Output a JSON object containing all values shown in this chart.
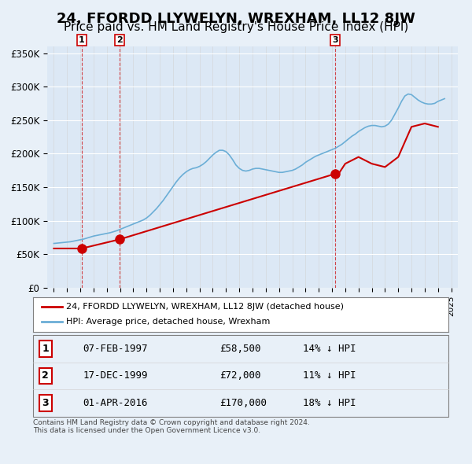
{
  "title": "24, FFORDD LLYWELYN, WREXHAM, LL12 8JW",
  "subtitle": "Price paid vs. HM Land Registry's House Price Index (HPI)",
  "title_fontsize": 13,
  "subtitle_fontsize": 11,
  "background_color": "#e8f0f8",
  "plot_bg_color": "#dce8f5",
  "ylim": [
    0,
    360000
  ],
  "yticks": [
    0,
    50000,
    100000,
    150000,
    200000,
    250000,
    300000,
    350000
  ],
  "ytick_labels": [
    "£0",
    "£50K",
    "£100K",
    "£150K",
    "£200K",
    "£250K",
    "£300K",
    "£350K"
  ],
  "xlim_start": 1994.5,
  "xlim_end": 2025.5,
  "hpi_color": "#6baed6",
  "price_color": "#cc0000",
  "transactions": [
    {
      "num": 1,
      "date_year": 1997.1,
      "price": 58500,
      "label": "07-FEB-1997",
      "amount": "£58,500",
      "pct": "14% ↓ HPI"
    },
    {
      "num": 2,
      "date_year": 1999.95,
      "price": 72000,
      "label": "17-DEC-1999",
      "amount": "£72,000",
      "pct": "11% ↓ HPI"
    },
    {
      "num": 3,
      "date_year": 2016.25,
      "price": 170000,
      "label": "01-APR-2016",
      "amount": "£170,000",
      "pct": "18% ↓ HPI"
    }
  ],
  "legend_line1": "24, FFORDD LLYWELYN, WREXHAM, LL12 8JW (detached house)",
  "legend_line2": "HPI: Average price, detached house, Wrexham",
  "footer": "Contains HM Land Registry data © Crown copyright and database right 2024.\nThis data is licensed under the Open Government Licence v3.0.",
  "hpi_data_years": [
    1995,
    1995.25,
    1995.5,
    1995.75,
    1996,
    1996.25,
    1996.5,
    1996.75,
    1997,
    1997.25,
    1997.5,
    1997.75,
    1998,
    1998.25,
    1998.5,
    1998.75,
    1999,
    1999.25,
    1999.5,
    1999.75,
    2000,
    2000.25,
    2000.5,
    2000.75,
    2001,
    2001.25,
    2001.5,
    2001.75,
    2002,
    2002.25,
    2002.5,
    2002.75,
    2003,
    2003.25,
    2003.5,
    2003.75,
    2004,
    2004.25,
    2004.5,
    2004.75,
    2005,
    2005.25,
    2005.5,
    2005.75,
    2006,
    2006.25,
    2006.5,
    2006.75,
    2007,
    2007.25,
    2007.5,
    2007.75,
    2008,
    2008.25,
    2008.5,
    2008.75,
    2009,
    2009.25,
    2009.5,
    2009.75,
    2010,
    2010.25,
    2010.5,
    2010.75,
    2011,
    2011.25,
    2011.5,
    2011.75,
    2012,
    2012.25,
    2012.5,
    2012.75,
    2013,
    2013.25,
    2013.5,
    2013.75,
    2014,
    2014.25,
    2014.5,
    2014.75,
    2015,
    2015.25,
    2015.5,
    2015.75,
    2016,
    2016.25,
    2016.5,
    2016.75,
    2017,
    2017.25,
    2017.5,
    2017.75,
    2018,
    2018.25,
    2018.5,
    2018.75,
    2019,
    2019.25,
    2019.5,
    2019.75,
    2020,
    2020.25,
    2020.5,
    2020.75,
    2021,
    2021.25,
    2021.5,
    2021.75,
    2022,
    2022.25,
    2022.5,
    2022.75,
    2023,
    2023.25,
    2023.5,
    2023.75,
    2024,
    2024.25,
    2024.5
  ],
  "hpi_data_values": [
    66000,
    66500,
    67000,
    67500,
    68000,
    68500,
    69500,
    70500,
    71500,
    72500,
    74000,
    75500,
    77000,
    78000,
    79000,
    80000,
    81000,
    82000,
    83500,
    85000,
    87000,
    89000,
    91000,
    93000,
    95000,
    97000,
    99000,
    101000,
    104000,
    108000,
    113000,
    118000,
    124000,
    130000,
    137000,
    144000,
    151000,
    158000,
    164000,
    169000,
    173000,
    176000,
    178000,
    179000,
    181000,
    184000,
    188000,
    193000,
    198000,
    202000,
    205000,
    205000,
    203000,
    198000,
    191000,
    183000,
    178000,
    175000,
    174000,
    175000,
    177000,
    178000,
    178000,
    177000,
    176000,
    175000,
    174000,
    173000,
    172000,
    172000,
    173000,
    174000,
    175000,
    177000,
    180000,
    183000,
    187000,
    190000,
    193000,
    196000,
    198000,
    200000,
    202000,
    204000,
    206000,
    208000,
    211000,
    214000,
    218000,
    222000,
    226000,
    229000,
    233000,
    236000,
    239000,
    241000,
    242000,
    242000,
    241000,
    240000,
    241000,
    244000,
    250000,
    259000,
    268000,
    278000,
    286000,
    289000,
    288000,
    284000,
    280000,
    277000,
    275000,
    274000,
    274000,
    275000,
    278000,
    280000,
    282000
  ],
  "price_line_years": [
    1995,
    1996,
    1997.1,
    1999.95,
    2016.25,
    2016.5,
    2017,
    2018,
    2019,
    2020,
    2021,
    2022,
    2023,
    2024
  ],
  "price_line_values": [
    58500,
    58500,
    58500,
    72000,
    170000,
    170000,
    185000,
    195000,
    185000,
    180000,
    195000,
    240000,
    245000,
    240000
  ]
}
